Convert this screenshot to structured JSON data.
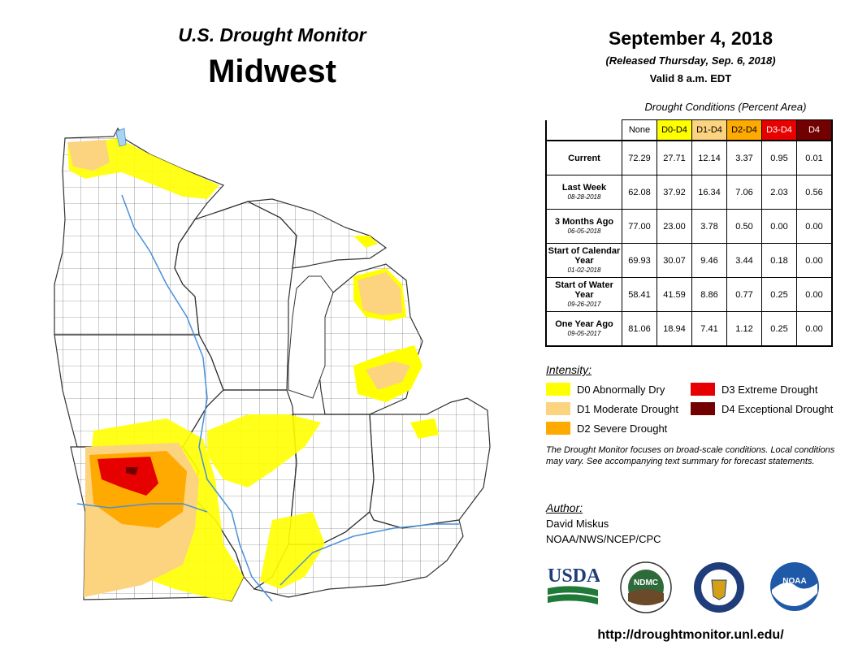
{
  "header": {
    "usdm_title": "U.S. Drought Monitor",
    "region": "Midwest",
    "date": "September 4, 2018",
    "released": "(Released Thursday, Sep. 6, 2018)",
    "valid": "Valid 8 a.m. EDT"
  },
  "table": {
    "title": "Drought Conditions (Percent Area)",
    "columns": [
      "None",
      "D0-D4",
      "D1-D4",
      "D2-D4",
      "D3-D4",
      "D4"
    ],
    "column_colors": [
      "#ffffff",
      "#ffff00",
      "#fcd37f",
      "#ffaa00",
      "#e60000",
      "#730000"
    ],
    "column_text_colors": [
      "#000000",
      "#000000",
      "#000000",
      "#000000",
      "#ffffff",
      "#ffffff"
    ],
    "rows": [
      {
        "label": "Current",
        "date": "",
        "values": [
          "72.29",
          "27.71",
          "12.14",
          "3.37",
          "0.95",
          "0.01"
        ]
      },
      {
        "label": "Last Week",
        "date": "08-28-2018",
        "values": [
          "62.08",
          "37.92",
          "16.34",
          "7.06",
          "2.03",
          "0.56"
        ]
      },
      {
        "label": "3 Months Ago",
        "date": "06-05-2018",
        "values": [
          "77.00",
          "23.00",
          "3.78",
          "0.50",
          "0.00",
          "0.00"
        ]
      },
      {
        "label": "Start of Calendar Year",
        "date": "01-02-2018",
        "values": [
          "69.93",
          "30.07",
          "9.46",
          "3.44",
          "0.18",
          "0.00"
        ]
      },
      {
        "label": "Start of Water Year",
        "date": "09-26-2017",
        "values": [
          "58.41",
          "41.59",
          "8.86",
          "0.77",
          "0.25",
          "0.00"
        ]
      },
      {
        "label": "One Year Ago",
        "date": "09-05-2017",
        "values": [
          "81.06",
          "18.94",
          "7.41",
          "1.12",
          "0.25",
          "0.00"
        ]
      }
    ]
  },
  "legend": {
    "title": "Intensity:",
    "items": [
      {
        "label": "D0 Abnormally Dry",
        "color": "#ffff00"
      },
      {
        "label": "D1 Moderate Drought",
        "color": "#fcd37f"
      },
      {
        "label": "D2 Severe Drought",
        "color": "#ffaa00"
      },
      {
        "label": "D3 Extreme Drought",
        "color": "#e60000"
      },
      {
        "label": "D4 Exceptional Drought",
        "color": "#730000"
      }
    ]
  },
  "note": "The Drought Monitor focuses on broad-scale conditions. Local conditions may vary. See accompanying text summary for forecast statements.",
  "author": {
    "label": "Author:",
    "name": "David Miskus",
    "org": "NOAA/NWS/NCEP/CPC"
  },
  "logos": [
    "USDA",
    "NDMC",
    "NOAA"
  ],
  "url": "http://droughtmonitor.unl.edu/",
  "map_colors": {
    "d0": "#ffff00",
    "d1": "#fcd37f",
    "d2": "#ffaa00",
    "d3": "#e60000",
    "d4": "#730000",
    "water": "#4a90d9",
    "lake": "#a8d4f0"
  }
}
